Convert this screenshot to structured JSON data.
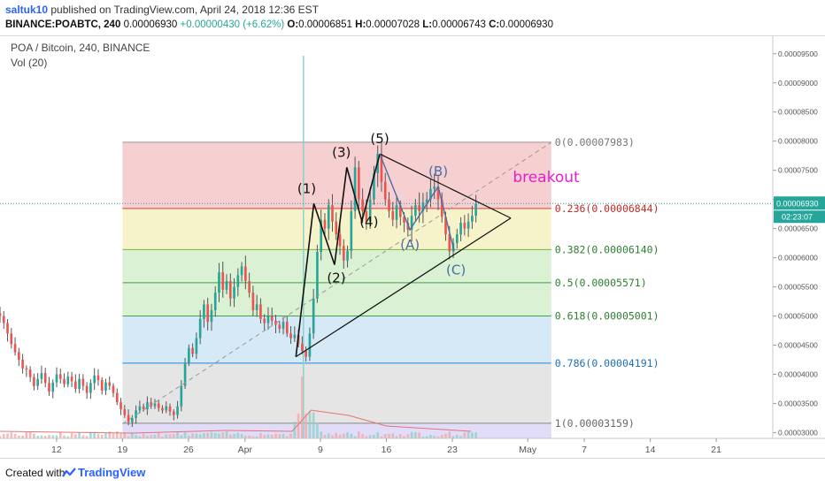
{
  "header": {
    "user": "saltuk10",
    "published": "published on TradingView.com, April 24, 2018 12:36 EST",
    "symbol": "BINANCE:POABTC, 240",
    "last": "0.00006930",
    "change": "+0.00000430 (+6.62%)",
    "o_label": "O:",
    "o": "0.00006851",
    "h_label": "H:",
    "h": "0.00007028",
    "l_label": "L:",
    "l": "0.00006743",
    "c_label": "C:",
    "c": "0.00006930"
  },
  "legend": {
    "title": "POA / Bitcoin, 240, BINANCE",
    "indicator": "Vol (20)"
  },
  "price_tag": {
    "price": "0.00006930",
    "countdown": "02:23:07"
  },
  "footer": {
    "created": "Created with",
    "brand": "TradingView"
  },
  "colors": {
    "up": "#26a69a",
    "down": "#ef5350",
    "wick": "#555555",
    "fib_red": "#f4c7c9",
    "fib_yellow": "#f4f1c2",
    "fib_green": "#d3efcc",
    "fib_blue": "#cfe5f4",
    "fib_grey": "#e1e1e1",
    "fib_purple": "#dcd6f7",
    "breakout": "#e81ec9",
    "wave_blue": "#4a6fa5"
  },
  "chart_data": {
    "type": "candlestick",
    "ylim": [
      2.9e-05,
      9.8e-05
    ],
    "y_ticks": [
      "0.00003000",
      "0.00003500",
      "0.00004000",
      "0.00004500",
      "0.00005000",
      "0.00005500",
      "0.00006000",
      "0.00006500",
      "0.00007000",
      "0.00007500",
      "0.00008000",
      "0.00008500",
      "0.00009000",
      "0.00009500"
    ],
    "y_tick_values": [
      3e-05,
      3.5e-05,
      4e-05,
      4.5e-05,
      5e-05,
      5.5e-05,
      6e-05,
      6.5e-05,
      7e-05,
      7.5e-05,
      8e-05,
      8.5e-05,
      9e-05,
      9.5e-05
    ],
    "x_ticks": [
      "12",
      "19",
      "26",
      "Apr",
      "9",
      "16",
      "23",
      "May",
      "7",
      "14",
      "21"
    ],
    "x_tick_days": [
      12,
      19,
      26,
      32,
      40,
      47,
      54,
      62,
      68,
      75,
      82
    ],
    "x_range_days": [
      6,
      88
    ],
    "fib_levels": [
      {
        "ratio": 0,
        "price": 7.983e-05,
        "label": "0(0.00007983)"
      },
      {
        "ratio": 0.236,
        "price": 6.844e-05,
        "label": "0.236(0.00006844)"
      },
      {
        "ratio": 0.382,
        "price": 6.14e-05,
        "label": "0.382(0.00006140)"
      },
      {
        "ratio": 0.5,
        "price": 5.571e-05,
        "label": "0.5(0.00005571)"
      },
      {
        "ratio": 0.618,
        "price": 5.001e-05,
        "label": "0.618(0.00005001)"
      },
      {
        "ratio": 0.786,
        "price": 4.191e-05,
        "label": "0.786(0.00004191)"
      },
      {
        "ratio": 1,
        "price": 3.159e-05,
        "label": "1(0.00003159)"
      }
    ],
    "fib_x_days": [
      19,
      64.5
    ],
    "wave_points": [
      {
        "label": "(1)",
        "day": 39.3,
        "price": 6.93e-05
      },
      {
        "label": "(2)",
        "day": 41.5,
        "price": 5.88e-05
      },
      {
        "label": "(3)",
        "day": 42.8,
        "price": 7.55e-05
      },
      {
        "label": "(4)",
        "day": 44.4,
        "price": 6.63e-05
      },
      {
        "label": "(5)",
        "day": 46.3,
        "price": 7.78e-05
      },
      {
        "label": "(A)",
        "day": 49.5,
        "price": 6.48e-05
      },
      {
        "label": "(B)",
        "day": 52.5,
        "price": 7.22e-05
      },
      {
        "label": "(C)",
        "day": 54.2,
        "price": 6.11e-05
      }
    ],
    "impulse_start": {
      "day": 37.4,
      "price": 4.3e-05
    },
    "triangle": {
      "apex": {
        "day": 60.2,
        "price": 6.68e-05
      },
      "top_start": {
        "day": 46.3,
        "price": 7.78e-05
      },
      "bottom_start": {
        "day": 37.4,
        "price": 4.3e-05
      }
    },
    "trend_dashed": {
      "from": {
        "day": 19,
        "price": 3.15e-05
      },
      "to": {
        "day": 64.5,
        "price": 7.98e-05
      }
    },
    "annotation": "breakout",
    "current_price": 6.93e-05,
    "volume_spike_day": 38.2,
    "candles_close": [
      5e-05,
      4.88e-05,
      4.7e-05,
      4.52e-05,
      4.38e-05,
      4.25e-05,
      4.1e-05,
      4.08e-05,
      3.95e-05,
      3.8e-05,
      3.92e-05,
      4.02e-05,
      3.85e-05,
      3.7e-05,
      3.86e-05,
      4e-05,
      3.92e-05,
      3.83e-05,
      3.96e-05,
      3.88e-05,
      3.75e-05,
      3.92e-05,
      3.8e-05,
      3.68e-05,
      3.85e-05,
      3.98e-05,
      3.9e-05,
      3.72e-05,
      3.86e-05,
      3.8e-05,
      3.68e-05,
      3.52e-05,
      3.4e-05,
      3.3e-05,
      3.18e-05,
      3.25e-05,
      3.38e-05,
      3.45e-05,
      3.4e-05,
      3.52e-05,
      3.45e-05,
      3.5e-05,
      3.42e-05,
      3.38e-05,
      3.45e-05,
      3.36e-05,
      3.3e-05,
      3.45e-05,
      3.8e-05,
      4.2e-05,
      4.45e-05,
      4.35e-05,
      4.62e-05,
      4.95e-05,
      5.2e-05,
      4.9e-05,
      5.1e-05,
      5.4e-05,
      5.75e-05,
      5.45e-05,
      5.6e-05,
      5.3e-05,
      5.5e-05,
      5.7e-05,
      5.85e-05,
      5.6e-05,
      5.4e-05,
      5.1e-05,
      5.2e-05,
      4.95e-05,
      4.88e-05,
      5e-05,
      4.92e-05,
      4.85e-05,
      4.78e-05,
      4.9e-05,
      4.7e-05,
      4.62e-05,
      4.68e-05,
      4.52e-05,
      4.4e-05,
      4.3e-05,
      4.7e-05,
      5.3e-05,
      6.1e-05,
      6.65e-05,
      6.5e-05,
      6.9e-05,
      6.62e-05,
      6.4e-05,
      6.2e-05,
      5.95e-05,
      6.12e-05,
      6.8e-05,
      7.55e-05,
      7e-05,
      6.8e-05,
      6.62e-05,
      7e-05,
      7.45e-05,
      7.78e-05,
      7.3e-05,
      7e-05,
      6.8e-05,
      6.65e-05,
      6.9e-05,
      6.7e-05,
      6.6e-05,
      6.48e-05,
      6.72e-05,
      6.9e-05,
      6.8e-05,
      6.95e-05,
      7e-05,
      7.18e-05,
      7.22e-05,
      7e-05,
      6.7e-05,
      6.4e-05,
      6.11e-05,
      6.25e-05,
      6.4e-05,
      6.6e-05,
      6.5e-05,
      6.62e-05,
      6.72e-05,
      6.93e-05
    ]
  }
}
